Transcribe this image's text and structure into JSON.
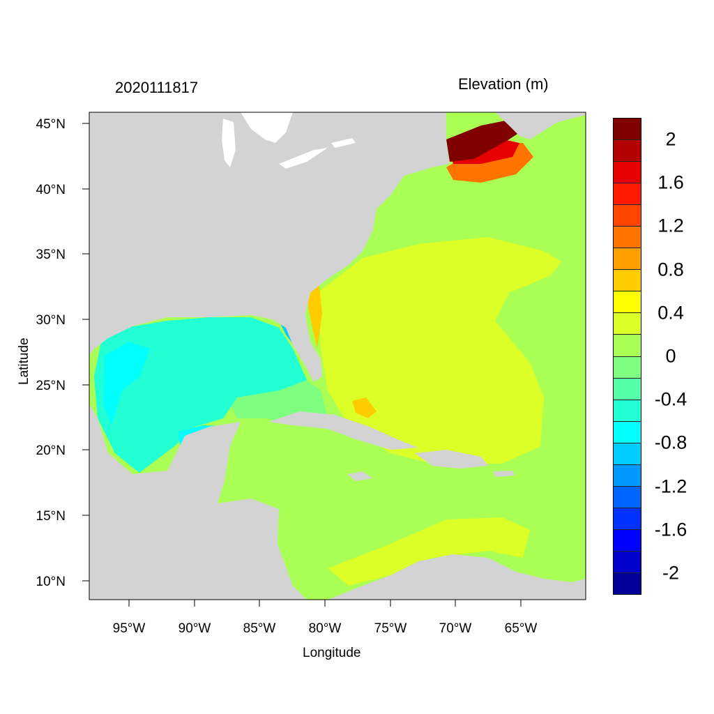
{
  "title_left": "2020111817",
  "title_right": "Elevation (m)",
  "chart_data": {
    "type": "map",
    "title": "2020111817",
    "variable": "Elevation (m)",
    "xlabel": "Longitude",
    "ylabel": "Latitude",
    "x_ticks": [
      "95°W",
      "90°W",
      "85°W",
      "80°W",
      "75°W",
      "70°W",
      "65°W"
    ],
    "x_tick_values": [
      -95,
      -90,
      -85,
      -80,
      -75,
      -70,
      -65
    ],
    "y_ticks": [
      "45°N",
      "40°N",
      "35°N",
      "30°N",
      "25°N",
      "20°N",
      "15°N",
      "10°N"
    ],
    "y_tick_values": [
      45,
      40,
      35,
      30,
      25,
      20,
      15,
      10
    ],
    "xlim": [
      -98,
      -60
    ],
    "ylim": [
      8.6,
      45.8
    ],
    "colorbar": {
      "labels": [
        "2",
        "1.6",
        "1.2",
        "0.8",
        "0.4",
        "0",
        "-0.4",
        "-0.8",
        "-1.2",
        "-1.6",
        "-2"
      ],
      "label_values": [
        2,
        1.6,
        1.2,
        0.8,
        0.4,
        0,
        -0.4,
        -0.8,
        -1.2,
        -1.6,
        -2
      ],
      "levels_step": 0.2,
      "colors": [
        "#800000",
        "#b40000",
        "#e60000",
        "#ff1a00",
        "#ff4500",
        "#ff7300",
        "#ffa000",
        "#ffcc00",
        "#ffff00",
        "#dcff28",
        "#aaff55",
        "#7fff7f",
        "#55ffaa",
        "#22ffd4",
        "#00ffff",
        "#00ccff",
        "#0099ff",
        "#0066ff",
        "#0033ff",
        "#0000ff",
        "#0000cc",
        "#000099"
      ]
    }
  },
  "colors": {
    "land": "#d3d3d3",
    "lakes": "#ffffff"
  }
}
